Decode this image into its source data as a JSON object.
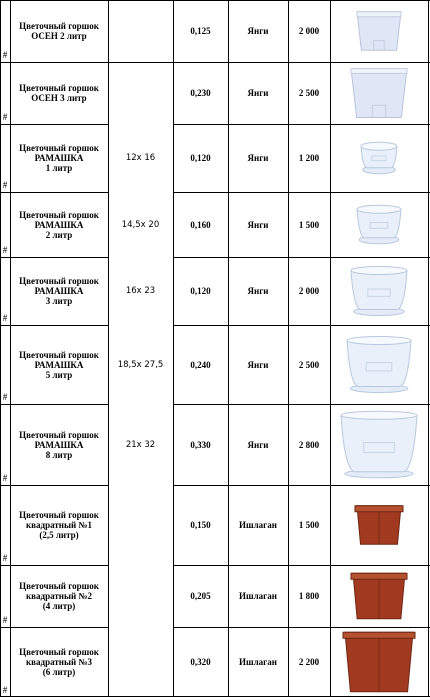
{
  "table": {
    "rows": [
      {
        "marker": "#",
        "name": "Цветочный горшок\nОСЕН 2 литр",
        "weight": "0,125",
        "status": "Янги",
        "price": "2 000"
      },
      {
        "marker": "#",
        "name": "Цветочный горшок\nОСЕН 3 литр",
        "weight": "0,230",
        "status": "Янги",
        "price": "2 500"
      },
      {
        "marker": "#",
        "name": "Цветочный горшок\nРАМАШКА\n1 литр",
        "size": "12x 16",
        "weight": "0,120",
        "status": "Янги",
        "price": "1 200"
      },
      {
        "marker": "#",
        "name": "Цветочный горшок\nРАМАШКА\n2 литр",
        "size": "14,5x 20",
        "weight": "0,160",
        "status": "Янги",
        "price": "1 500"
      },
      {
        "marker": "#",
        "name": "Цветочный горшок\nРАМАШКА\n3 литр",
        "size": "16x 23",
        "weight": "0,120",
        "status": "Янги",
        "price": "2 000"
      },
      {
        "marker": "#",
        "name": "Цветочный горшок\nРАМАШКА\n5 литр",
        "size": "18,5x 27,5",
        "weight": "0,240",
        "status": "Янги",
        "price": "2 500"
      },
      {
        "marker": "#",
        "name": "Цветочный горшок\nРАМАШКА\n8 литр",
        "size": "21x 32",
        "weight": "0,330",
        "status": "Янги",
        "price": "2 800"
      },
      {
        "marker": "#",
        "name": "Цветочный горшок\nквадратный №1\n(2,5 литр)",
        "weight": "0,150",
        "status": "Ишлаган",
        "price": "1 500"
      },
      {
        "marker": "#",
        "name": "Цветочный горшок\nквадратный №2\n(4 литр)",
        "weight": "0,205",
        "status": "Ишлаган",
        "price": "1 800"
      },
      {
        "marker": "#",
        "name": "Цветочный горшок\nквадратный №3\n(6 литр)",
        "weight": "0,320",
        "status": "Ишлаган",
        "price": "2 200"
      }
    ]
  }
}
